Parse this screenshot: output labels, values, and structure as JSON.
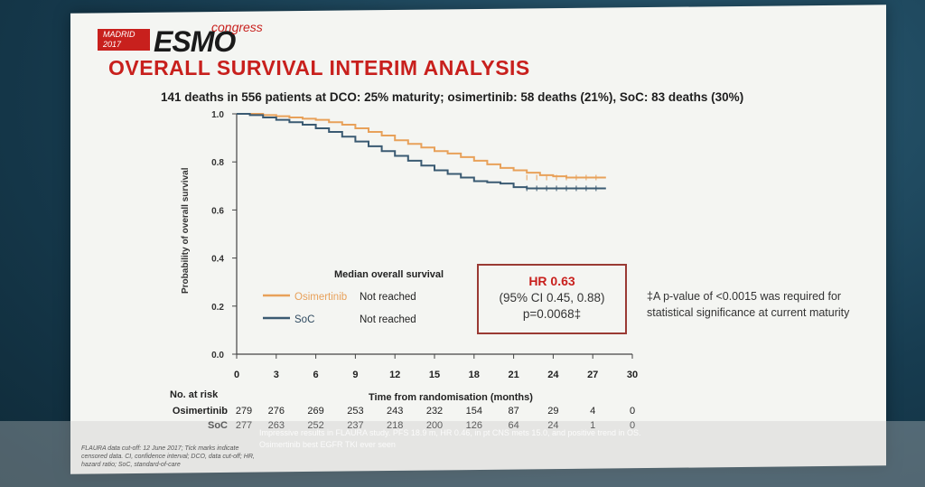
{
  "logo": {
    "city": "MADRID",
    "year": "2017",
    "brand": "ESMO",
    "word": "congress"
  },
  "title": "OVERALL SURVIVAL INTERIM ANALYSIS",
  "subtitle": "141 deaths in 556 patients at DCO: 25% maturity; osimertinib: 58 deaths (21%), SoC: 83 deaths (30%)",
  "legend": {
    "title": "Median overall survival",
    "entries": [
      {
        "name": "Osimertinib",
        "value": "Not reached",
        "color": "#e8a15a"
      },
      {
        "name": "SoC",
        "value": "Not reached",
        "color": "#3a5a72"
      }
    ]
  },
  "hazard": {
    "title": "HR 0.63",
    "ci": "(95% CI 0.45, 0.88)",
    "p": "p=0.0068‡"
  },
  "footnote": "‡A p-value of <0.0015 was required for statistical significance at current maturity",
  "risk": {
    "title": "No. at risk",
    "rows": [
      {
        "label": "Osimertinib",
        "values": [
          "279",
          "276",
          "269",
          "253",
          "243",
          "232",
          "154",
          "87",
          "29",
          "4",
          "0"
        ]
      },
      {
        "label": "SoC",
        "values": [
          "277",
          "263",
          "252",
          "237",
          "218",
          "200",
          "126",
          "64",
          "24",
          "1",
          "0"
        ]
      }
    ]
  },
  "bottom_note": "FLAURA data cut-off: 12 June 2017; Tick marks indicate censored data. CI, confidence interval; DCO, data cut-off; HR, hazard ratio; SoC, standard-of-care",
  "caption": "Impressive results in FLAURA study. PFS 18.9 m, HR 0.46, in pt CNS mets 15.0, and positive trend in OS. Osimertinib best EGFR TKI ever seen",
  "chart_data": {
    "type": "line",
    "xlabel": "Time from randomisation (months)",
    "ylabel": "Probability of overall survival",
    "xlim": [
      0,
      30
    ],
    "ylim": [
      0,
      1
    ],
    "x_ticks": [
      "0",
      "3",
      "6",
      "9",
      "12",
      "15",
      "18",
      "21",
      "24",
      "27",
      "30"
    ],
    "y_ticks": [
      "0.0",
      "0.2",
      "0.4",
      "0.6",
      "0.8",
      "1.0"
    ],
    "series": [
      {
        "name": "Osimertinib",
        "color": "#e8a15a",
        "x": [
          0,
          1,
          2,
          3,
          4,
          5,
          6,
          7,
          8,
          9,
          10,
          11,
          12,
          13,
          14,
          15,
          16,
          17,
          18,
          19,
          20,
          21,
          22,
          23,
          24,
          25,
          26,
          27,
          28
        ],
        "y": [
          1.0,
          1.0,
          0.995,
          0.99,
          0.985,
          0.98,
          0.975,
          0.965,
          0.955,
          0.94,
          0.925,
          0.91,
          0.89,
          0.875,
          0.86,
          0.845,
          0.835,
          0.82,
          0.805,
          0.79,
          0.775,
          0.765,
          0.755,
          0.745,
          0.74,
          0.735,
          0.735,
          0.735,
          0.735
        ]
      },
      {
        "name": "SoC",
        "color": "#3a5a72",
        "x": [
          0,
          1,
          2,
          3,
          4,
          5,
          6,
          7,
          8,
          9,
          10,
          11,
          12,
          13,
          14,
          15,
          16,
          17,
          18,
          19,
          20,
          21,
          22,
          23,
          24,
          25,
          26,
          27,
          28
        ],
        "y": [
          1.0,
          0.995,
          0.985,
          0.975,
          0.965,
          0.955,
          0.94,
          0.925,
          0.905,
          0.885,
          0.865,
          0.845,
          0.825,
          0.805,
          0.785,
          0.765,
          0.75,
          0.735,
          0.72,
          0.715,
          0.71,
          0.695,
          0.69,
          0.69,
          0.69,
          0.69,
          0.69,
          0.69,
          0.69
        ]
      }
    ]
  }
}
